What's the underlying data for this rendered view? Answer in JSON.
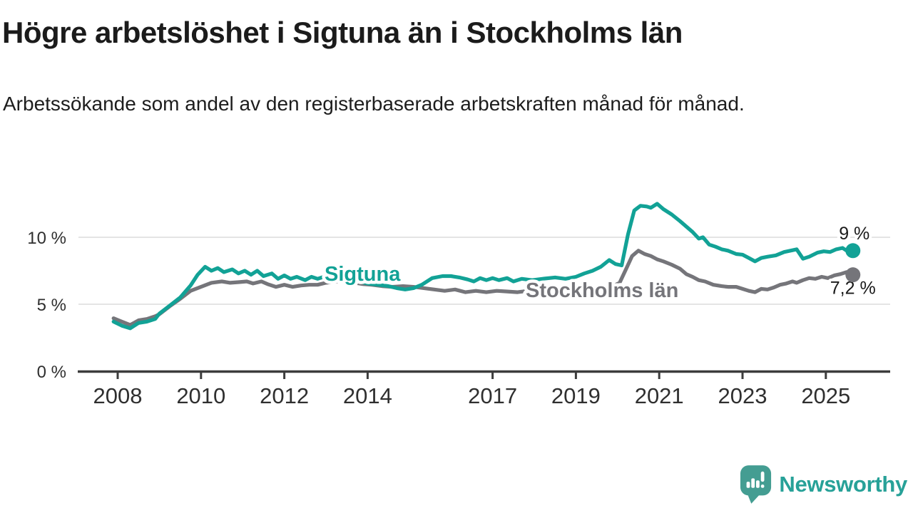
{
  "header": {
    "title": "Högre arbetslöshet i Sigtuna än i Stockholms län",
    "subtitle": "Arbetssökande som andel av den registerbaserade arbetskraften månad för månad."
  },
  "footer": {
    "brand": "Newsworthy",
    "logo_icon": "newsworthy-speech-bubble-with-bar-chart-and-exclamation"
  },
  "colors": {
    "sigtuna": "#12a296",
    "stockholm": "#75757a",
    "grid": "#dcdcdc",
    "axis": "#3c3c3c",
    "tick_text": "#2f2f2f",
    "title_text": "#1b1b1b",
    "end_label_text": "#1a1a1a",
    "halo": "#ffffff",
    "brand_icon": "#449d92",
    "brand_text": "#27a198"
  },
  "chart_data": {
    "type": "line",
    "title": "Högre arbetslöshet i Sigtuna än i Stockholms län",
    "subtitle": "Arbetssökande som andel av den registerbaserade arbetskraften månad för månad.",
    "x_unit": "year (monthly observations)",
    "y_unit": "percent of registered labour force",
    "grid": "horizontal-only",
    "legend": "inline-series-labels",
    "xlim": [
      2007.1,
      2026.5
    ],
    "ylim": [
      0,
      13.9
    ],
    "xticks": [
      {
        "value": 2008,
        "label": "2008"
      },
      {
        "value": 2010,
        "label": "2010"
      },
      {
        "value": 2012,
        "label": "2012"
      },
      {
        "value": 2014,
        "label": "2014"
      },
      {
        "value": 2017,
        "label": "2017"
      },
      {
        "value": 2019,
        "label": "2019"
      },
      {
        "value": 2021,
        "label": "2021"
      },
      {
        "value": 2023,
        "label": "2023"
      },
      {
        "value": 2025,
        "label": "2025"
      }
    ],
    "yticks": [
      {
        "value": 0,
        "label": "0 %"
      },
      {
        "value": 5,
        "label": "5 %"
      },
      {
        "value": 10,
        "label": "10 %"
      }
    ],
    "series": [
      {
        "name": "Sigtuna",
        "color": "#12a296",
        "end_label": "9 %",
        "end_value": 9.0,
        "points": [
          [
            2007.9,
            3.7
          ],
          [
            2008.1,
            3.4
          ],
          [
            2008.3,
            3.2
          ],
          [
            2008.5,
            3.6
          ],
          [
            2008.7,
            3.7
          ],
          [
            2008.9,
            3.9
          ],
          [
            2009.0,
            4.3
          ],
          [
            2009.25,
            4.9
          ],
          [
            2009.5,
            5.5
          ],
          [
            2009.75,
            6.4
          ],
          [
            2009.92,
            7.2
          ],
          [
            2010.1,
            7.8
          ],
          [
            2010.25,
            7.5
          ],
          [
            2010.4,
            7.7
          ],
          [
            2010.55,
            7.4
          ],
          [
            2010.75,
            7.6
          ],
          [
            2010.9,
            7.3
          ],
          [
            2011.05,
            7.5
          ],
          [
            2011.2,
            7.2
          ],
          [
            2011.35,
            7.5
          ],
          [
            2011.5,
            7.1
          ],
          [
            2011.7,
            7.3
          ],
          [
            2011.85,
            6.9
          ],
          [
            2012.0,
            7.15
          ],
          [
            2012.15,
            6.9
          ],
          [
            2012.3,
            7.05
          ],
          [
            2012.5,
            6.8
          ],
          [
            2012.65,
            7.05
          ],
          [
            2012.8,
            6.9
          ],
          [
            2013.0,
            7.1
          ],
          [
            2013.2,
            7.25
          ],
          [
            2013.4,
            7.15
          ],
          [
            2013.6,
            6.9
          ],
          [
            2013.8,
            6.7
          ],
          [
            2014.0,
            6.55
          ],
          [
            2014.25,
            6.45
          ],
          [
            2014.5,
            6.35
          ],
          [
            2014.7,
            6.2
          ],
          [
            2014.9,
            6.1
          ],
          [
            2015.1,
            6.2
          ],
          [
            2015.3,
            6.45
          ],
          [
            2015.55,
            6.95
          ],
          [
            2015.8,
            7.1
          ],
          [
            2016.0,
            7.1
          ],
          [
            2016.2,
            7.0
          ],
          [
            2016.4,
            6.85
          ],
          [
            2016.55,
            6.7
          ],
          [
            2016.7,
            6.95
          ],
          [
            2016.85,
            6.8
          ],
          [
            2017.0,
            6.95
          ],
          [
            2017.15,
            6.8
          ],
          [
            2017.35,
            6.95
          ],
          [
            2017.5,
            6.7
          ],
          [
            2017.7,
            6.9
          ],
          [
            2017.95,
            6.8
          ],
          [
            2018.2,
            6.9
          ],
          [
            2018.5,
            7.0
          ],
          [
            2018.75,
            6.9
          ],
          [
            2019.0,
            7.05
          ],
          [
            2019.2,
            7.3
          ],
          [
            2019.4,
            7.5
          ],
          [
            2019.6,
            7.8
          ],
          [
            2019.8,
            8.3
          ],
          [
            2019.95,
            8.0
          ],
          [
            2020.1,
            7.9
          ],
          [
            2020.25,
            10.2
          ],
          [
            2020.4,
            12.0
          ],
          [
            2020.55,
            12.35
          ],
          [
            2020.7,
            12.3
          ],
          [
            2020.8,
            12.2
          ],
          [
            2020.95,
            12.5
          ],
          [
            2021.1,
            12.1
          ],
          [
            2021.3,
            11.7
          ],
          [
            2021.5,
            11.2
          ],
          [
            2021.65,
            10.8
          ],
          [
            2021.8,
            10.4
          ],
          [
            2021.95,
            9.9
          ],
          [
            2022.05,
            10.0
          ],
          [
            2022.2,
            9.45
          ],
          [
            2022.35,
            9.3
          ],
          [
            2022.5,
            9.1
          ],
          [
            2022.65,
            9.0
          ],
          [
            2022.85,
            8.75
          ],
          [
            2023.0,
            8.7
          ],
          [
            2023.15,
            8.45
          ],
          [
            2023.3,
            8.2
          ],
          [
            2023.45,
            8.45
          ],
          [
            2023.6,
            8.55
          ],
          [
            2023.8,
            8.65
          ],
          [
            2024.0,
            8.9
          ],
          [
            2024.15,
            9.0
          ],
          [
            2024.3,
            9.1
          ],
          [
            2024.45,
            8.4
          ],
          [
            2024.6,
            8.55
          ],
          [
            2024.8,
            8.85
          ],
          [
            2024.95,
            8.95
          ],
          [
            2025.1,
            8.9
          ],
          [
            2025.25,
            9.1
          ],
          [
            2025.4,
            9.2
          ],
          [
            2025.5,
            9.0
          ],
          [
            2025.65,
            9.0
          ]
        ]
      },
      {
        "name": "Stockholms län",
        "color": "#75757a",
        "end_label": "7,2 %",
        "end_value": 7.2,
        "points": [
          [
            2007.9,
            3.95
          ],
          [
            2008.1,
            3.7
          ],
          [
            2008.3,
            3.45
          ],
          [
            2008.5,
            3.8
          ],
          [
            2008.7,
            3.9
          ],
          [
            2008.9,
            4.1
          ],
          [
            2009.0,
            4.25
          ],
          [
            2009.25,
            4.85
          ],
          [
            2009.5,
            5.4
          ],
          [
            2009.75,
            6.0
          ],
          [
            2010.0,
            6.3
          ],
          [
            2010.25,
            6.6
          ],
          [
            2010.5,
            6.7
          ],
          [
            2010.7,
            6.6
          ],
          [
            2010.9,
            6.65
          ],
          [
            2011.1,
            6.7
          ],
          [
            2011.25,
            6.55
          ],
          [
            2011.45,
            6.7
          ],
          [
            2011.6,
            6.5
          ],
          [
            2011.8,
            6.3
          ],
          [
            2012.0,
            6.45
          ],
          [
            2012.2,
            6.3
          ],
          [
            2012.4,
            6.4
          ],
          [
            2012.6,
            6.45
          ],
          [
            2012.8,
            6.45
          ],
          [
            2013.0,
            6.6
          ],
          [
            2013.25,
            6.7
          ],
          [
            2013.5,
            6.75
          ],
          [
            2013.7,
            6.6
          ],
          [
            2013.9,
            6.5
          ],
          [
            2014.1,
            6.45
          ],
          [
            2014.35,
            6.35
          ],
          [
            2014.6,
            6.3
          ],
          [
            2014.85,
            6.35
          ],
          [
            2015.1,
            6.3
          ],
          [
            2015.35,
            6.2
          ],
          [
            2015.6,
            6.1
          ],
          [
            2015.85,
            6.0
          ],
          [
            2016.1,
            6.1
          ],
          [
            2016.35,
            5.9
          ],
          [
            2016.6,
            6.0
          ],
          [
            2016.85,
            5.9
          ],
          [
            2017.1,
            6.0
          ],
          [
            2017.35,
            5.95
          ],
          [
            2017.6,
            5.9
          ],
          [
            2017.85,
            6.0
          ],
          [
            2018.1,
            6.0
          ],
          [
            2018.4,
            5.95
          ],
          [
            2018.7,
            5.9
          ],
          [
            2019.0,
            5.9
          ],
          [
            2019.3,
            6.0
          ],
          [
            2019.6,
            6.1
          ],
          [
            2019.85,
            6.3
          ],
          [
            2020.05,
            6.6
          ],
          [
            2020.2,
            7.6
          ],
          [
            2020.35,
            8.6
          ],
          [
            2020.5,
            9.0
          ],
          [
            2020.65,
            8.75
          ],
          [
            2020.8,
            8.6
          ],
          [
            2020.95,
            8.35
          ],
          [
            2021.1,
            8.2
          ],
          [
            2021.3,
            7.95
          ],
          [
            2021.5,
            7.65
          ],
          [
            2021.65,
            7.25
          ],
          [
            2021.8,
            7.05
          ],
          [
            2021.95,
            6.8
          ],
          [
            2022.1,
            6.7
          ],
          [
            2022.3,
            6.45
          ],
          [
            2022.5,
            6.35
          ],
          [
            2022.65,
            6.3
          ],
          [
            2022.85,
            6.3
          ],
          [
            2023.0,
            6.15
          ],
          [
            2023.15,
            6.0
          ],
          [
            2023.3,
            5.9
          ],
          [
            2023.45,
            6.15
          ],
          [
            2023.6,
            6.1
          ],
          [
            2023.75,
            6.25
          ],
          [
            2023.9,
            6.45
          ],
          [
            2024.05,
            6.55
          ],
          [
            2024.2,
            6.7
          ],
          [
            2024.3,
            6.6
          ],
          [
            2024.45,
            6.8
          ],
          [
            2024.6,
            6.95
          ],
          [
            2024.75,
            6.9
          ],
          [
            2024.9,
            7.05
          ],
          [
            2025.05,
            6.95
          ],
          [
            2025.2,
            7.15
          ],
          [
            2025.35,
            7.25
          ],
          [
            2025.5,
            7.4
          ],
          [
            2025.65,
            7.2
          ]
        ]
      }
    ]
  }
}
